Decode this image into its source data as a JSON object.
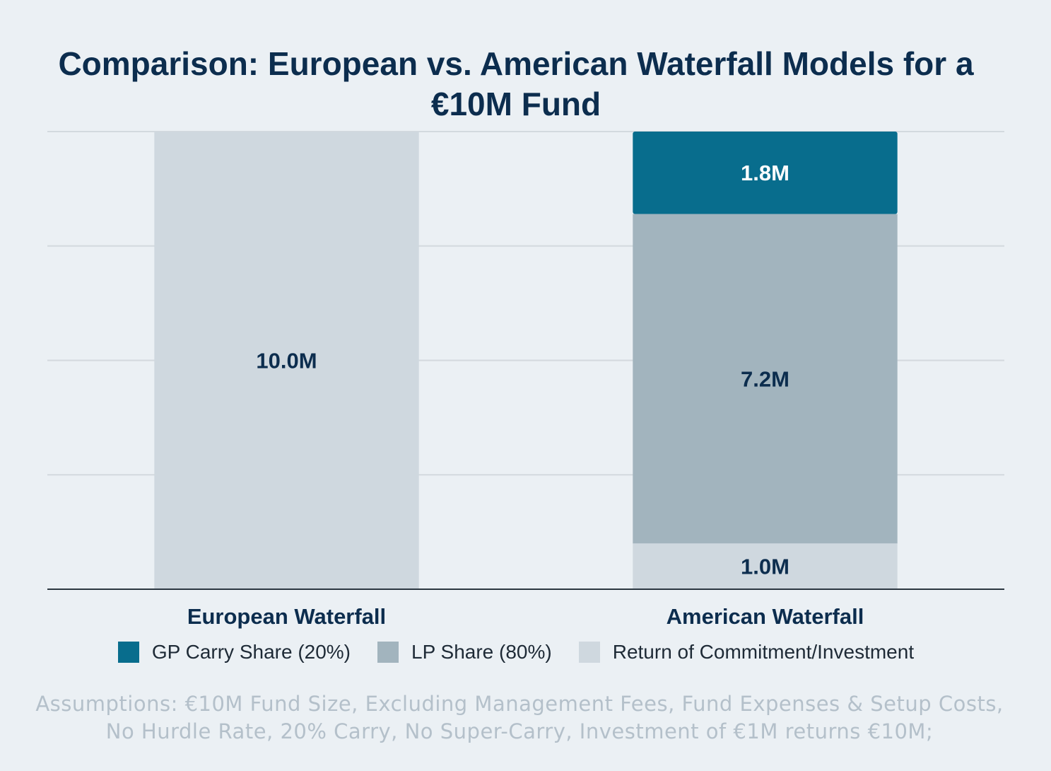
{
  "chart_data": {
    "type": "bar",
    "stacked": true,
    "title": "Comparison: European vs. American Waterfall Models for a €10M Fund",
    "categories": [
      "European Waterfall",
      "American Waterfall"
    ],
    "ylim": [
      0,
      10
    ],
    "grid": true,
    "legend_position": "bottom",
    "series": [
      {
        "name": "Return of Commitment/Investment",
        "color": "#cfd8df",
        "values": [
          10.0,
          1.0
        ],
        "labels": [
          "10.0M",
          "1.0M"
        ]
      },
      {
        "name": "LP Share (80%)",
        "color": "#a2b4be",
        "values": [
          0,
          7.2
        ],
        "labels": [
          "",
          "7.2M"
        ]
      },
      {
        "name": "GP Carry Share (20%)",
        "color": "#086d8d",
        "values": [
          0,
          1.8
        ],
        "labels": [
          "",
          "1.8M"
        ]
      }
    ],
    "legend": [
      {
        "name": "GP Carry Share (20%)",
        "color": "#086d8d"
      },
      {
        "name": "LP Share (80%)",
        "color": "#a2b4be"
      },
      {
        "name": "Return of Commitment/Investment",
        "color": "#cfd8df"
      }
    ]
  },
  "assumptions": "Assumptions: €10M Fund Size, Excluding Management Fees, Fund Expenses & Setup Costs, No Hurdle Rate, 20% Carry, No Super-Carry, Investment of €1M returns €10M;"
}
